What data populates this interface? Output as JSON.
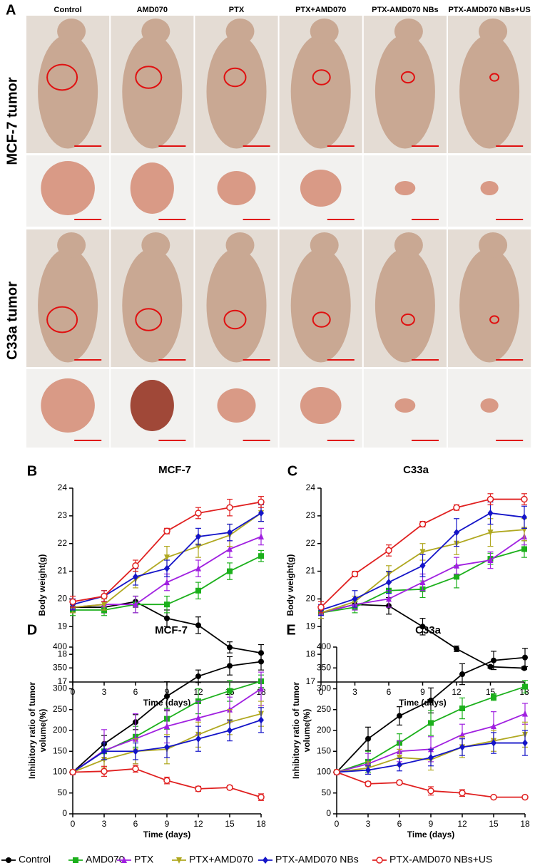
{
  "panel_a": {
    "label": "A",
    "columns": [
      "Control",
      "AMD070",
      "PTX",
      "PTX+AMD070",
      "PTX-AMD070 NBs",
      "PTX-AMD070 NBs+US"
    ],
    "rows": [
      "MCF-7 tumor",
      "C33a tumor"
    ]
  },
  "chart_data": [
    {
      "type": "line",
      "panel": "B",
      "title": "MCF-7",
      "xlabel": "Time (days)",
      "ylabel": [
        "Body weight(g)"
      ],
      "x": [
        0,
        3,
        6,
        9,
        12,
        15,
        18
      ],
      "xlim": [
        0,
        18
      ],
      "xticks": [
        0,
        3,
        6,
        9,
        12,
        15,
        18
      ],
      "ylim": [
        17,
        24
      ],
      "yticks": [
        17,
        18,
        19,
        20,
        21,
        22,
        23,
        24
      ],
      "series": [
        {
          "name": "Control",
          "color": "#000000",
          "marker": "circle",
          "values": [
            19.7,
            19.7,
            19.9,
            19.3,
            19.05,
            18.25,
            18.05
          ],
          "errors": [
            0.2,
            0.2,
            0.2,
            0.3,
            0.3,
            0.2,
            0.3
          ]
        },
        {
          "name": "AMD070",
          "color": "#1cb01c",
          "marker": "square",
          "values": [
            19.6,
            19.6,
            19.8,
            19.8,
            20.3,
            21.0,
            21.55
          ],
          "errors": [
            0.2,
            0.2,
            0.3,
            0.3,
            0.3,
            0.3,
            0.2
          ]
        },
        {
          "name": "PTX",
          "color": "#a020e0",
          "marker": "triangle",
          "values": [
            19.7,
            19.8,
            19.8,
            20.6,
            21.1,
            21.8,
            22.25
          ],
          "errors": [
            0.2,
            0.2,
            0.3,
            0.3,
            0.3,
            0.3,
            0.3
          ]
        },
        {
          "name": "PTX+AMD070",
          "color": "#b0a820",
          "marker": "triangle-down",
          "values": [
            19.7,
            19.8,
            20.7,
            21.5,
            21.9,
            22.3,
            23.1
          ],
          "errors": [
            0.2,
            0.2,
            0.3,
            0.4,
            0.4,
            0.4,
            0.3
          ]
        },
        {
          "name": "PTX-AMD070 NBs",
          "color": "#1414c8",
          "marker": "diamond",
          "values": [
            19.8,
            20.1,
            20.8,
            21.1,
            22.25,
            22.4,
            23.1
          ],
          "errors": [
            0.2,
            0.2,
            0.3,
            0.3,
            0.3,
            0.3,
            0.3
          ]
        },
        {
          "name": "PTX-AMD070 NBs+US",
          "color": "#e02020",
          "marker": "open-circle",
          "values": [
            19.9,
            20.1,
            21.2,
            22.45,
            23.1,
            23.3,
            23.5
          ],
          "errors": [
            0.2,
            0.2,
            0.2,
            0.1,
            0.2,
            0.3,
            0.2
          ]
        }
      ]
    },
    {
      "type": "line",
      "panel": "C",
      "title": "C33a",
      "xlabel": "Time (days)",
      "ylabel": [
        "Body weight(g)"
      ],
      "x": [
        0,
        3,
        6,
        9,
        12,
        15,
        18
      ],
      "xlim": [
        0,
        18
      ],
      "xticks": [
        0,
        3,
        6,
        9,
        12,
        15,
        18
      ],
      "ylim": [
        17,
        24
      ],
      "yticks": [
        17,
        18,
        19,
        20,
        21,
        22,
        23,
        24
      ],
      "series": [
        {
          "name": "Control",
          "color": "#000000",
          "marker": "circle",
          "values": [
            19.5,
            19.8,
            19.75,
            19.0,
            18.2,
            17.55,
            17.5
          ],
          "errors": [
            0.2,
            0.2,
            0.3,
            0.3,
            0.1,
            0.05,
            0.05
          ]
        },
        {
          "name": "AMD070",
          "color": "#1cb01c",
          "marker": "square",
          "values": [
            19.5,
            19.7,
            20.3,
            20.35,
            20.8,
            21.45,
            21.8
          ],
          "errors": [
            0.2,
            0.2,
            0.3,
            0.3,
            0.4,
            0.2,
            0.3
          ]
        },
        {
          "name": "PTX",
          "color": "#a020e0",
          "marker": "triangle",
          "values": [
            19.5,
            19.8,
            20.0,
            20.6,
            21.2,
            21.4,
            22.25
          ],
          "errors": [
            0.2,
            0.2,
            0.3,
            0.3,
            0.3,
            0.3,
            0.3
          ]
        },
        {
          "name": "PTX+AMD070",
          "color": "#b0a820",
          "marker": "triangle-down",
          "values": [
            19.5,
            19.9,
            20.9,
            21.7,
            22.0,
            22.4,
            22.5
          ],
          "errors": [
            0.2,
            0.2,
            0.3,
            0.3,
            0.4,
            0.5,
            0.4
          ]
        },
        {
          "name": "PTX-AMD070 NBs",
          "color": "#1414c8",
          "marker": "diamond",
          "values": [
            19.6,
            20.0,
            20.6,
            21.2,
            22.4,
            23.1,
            22.95
          ],
          "errors": [
            0.2,
            0.3,
            0.4,
            0.4,
            0.5,
            0.4,
            0.4
          ]
        },
        {
          "name": "PTX-AMD070 NBs+US",
          "color": "#e02020",
          "marker": "open-circle",
          "values": [
            19.7,
            20.9,
            21.75,
            22.7,
            23.3,
            23.6,
            23.6
          ],
          "errors": [
            0.2,
            0.1,
            0.2,
            0.1,
            0.1,
            0.2,
            0.2
          ]
        }
      ]
    },
    {
      "type": "line",
      "panel": "D",
      "title": "MCF-7",
      "xlabel": "Time (days)",
      "ylabel": [
        "Inhibitory ratio of tumor",
        "volume(%)"
      ],
      "x": [
        0,
        3,
        6,
        9,
        12,
        15,
        18
      ],
      "xlim": [
        0,
        18
      ],
      "xticks": [
        0,
        3,
        6,
        9,
        12,
        15,
        18
      ],
      "ylim": [
        0,
        400
      ],
      "yticks": [
        0,
        50,
        100,
        150,
        200,
        250,
        300,
        350,
        400
      ],
      "series": [
        {
          "name": "Control",
          "color": "#000000",
          "marker": "circle",
          "values": [
            100,
            168,
            220,
            282,
            330,
            355,
            365
          ],
          "errors": [
            0,
            20,
            18,
            35,
            15,
            22,
            20
          ]
        },
        {
          "name": "AMD070",
          "color": "#1cb01c",
          "marker": "square",
          "values": [
            100,
            150,
            185,
            228,
            270,
            295,
            318
          ],
          "errors": [
            0,
            20,
            25,
            25,
            30,
            25,
            15
          ]
        },
        {
          "name": "PTX",
          "color": "#a020e0",
          "marker": "triangle",
          "values": [
            100,
            152,
            180,
            210,
            230,
            250,
            300
          ],
          "errors": [
            0,
            50,
            60,
            40,
            40,
            30,
            40
          ]
        },
        {
          "name": "PTX+AMD070",
          "color": "#b0a820",
          "marker": "triangle-down",
          "values": [
            100,
            130,
            150,
            155,
            190,
            220,
            240
          ],
          "errors": [
            0,
            20,
            30,
            35,
            30,
            30,
            30
          ]
        },
        {
          "name": "PTX-AMD070 NBs",
          "color": "#1414c8",
          "marker": "diamond",
          "values": [
            100,
            150,
            150,
            160,
            180,
            200,
            225
          ],
          "errors": [
            0,
            20,
            20,
            25,
            30,
            25,
            30
          ]
        },
        {
          "name": "PTX-AMD070 NBs+US",
          "color": "#e02020",
          "marker": "open-circle",
          "values": [
            100,
            102,
            108,
            80,
            60,
            63,
            40
          ],
          "errors": [
            0,
            12,
            8,
            8,
            6,
            5,
            8
          ]
        }
      ]
    },
    {
      "type": "line",
      "panel": "E",
      "title": "C33a",
      "xlabel": "Time (days)",
      "ylabel": [
        "Inhibitory ratio of tumor",
        "volume(%)"
      ],
      "x": [
        0,
        3,
        6,
        9,
        12,
        15,
        18
      ],
      "xlim": [
        0,
        18
      ],
      "xticks": [
        0,
        3,
        6,
        9,
        12,
        15,
        18
      ],
      "ylim": [
        0,
        400
      ],
      "yticks": [
        0,
        50,
        100,
        150,
        200,
        250,
        300,
        350,
        400
      ],
      "series": [
        {
          "name": "Control",
          "color": "#000000",
          "marker": "circle",
          "values": [
            100,
            180,
            235,
            272,
            335,
            368,
            375
          ],
          "errors": [
            0,
            28,
            22,
            30,
            25,
            22,
            22
          ]
        },
        {
          "name": "AMD070",
          "color": "#1cb01c",
          "marker": "square",
          "values": [
            100,
            125,
            170,
            218,
            253,
            280,
            305
          ],
          "errors": [
            0,
            25,
            22,
            30,
            25,
            8,
            15
          ]
        },
        {
          "name": "PTX",
          "color": "#a020e0",
          "marker": "triangle",
          "values": [
            100,
            120,
            150,
            155,
            190,
            210,
            240
          ],
          "errors": [
            0,
            25,
            25,
            30,
            25,
            35,
            25
          ]
        },
        {
          "name": "PTX+AMD070",
          "color": "#b0a820",
          "marker": "triangle-down",
          "values": [
            100,
            110,
            135,
            130,
            160,
            175,
            190
          ],
          "errors": [
            0,
            15,
            20,
            25,
            25,
            25,
            30
          ]
        },
        {
          "name": "PTX-AMD070 NBs",
          "color": "#1414c8",
          "marker": "diamond",
          "values": [
            100,
            105,
            118,
            135,
            160,
            170,
            170
          ],
          "errors": [
            0,
            10,
            15,
            20,
            20,
            25,
            30
          ]
        },
        {
          "name": "PTX-AMD070 NBs+US",
          "color": "#e02020",
          "marker": "open-circle",
          "values": [
            100,
            72,
            75,
            55,
            50,
            40,
            40
          ],
          "errors": [
            0,
            5,
            5,
            10,
            8,
            3,
            3
          ]
        }
      ]
    }
  ]
}
